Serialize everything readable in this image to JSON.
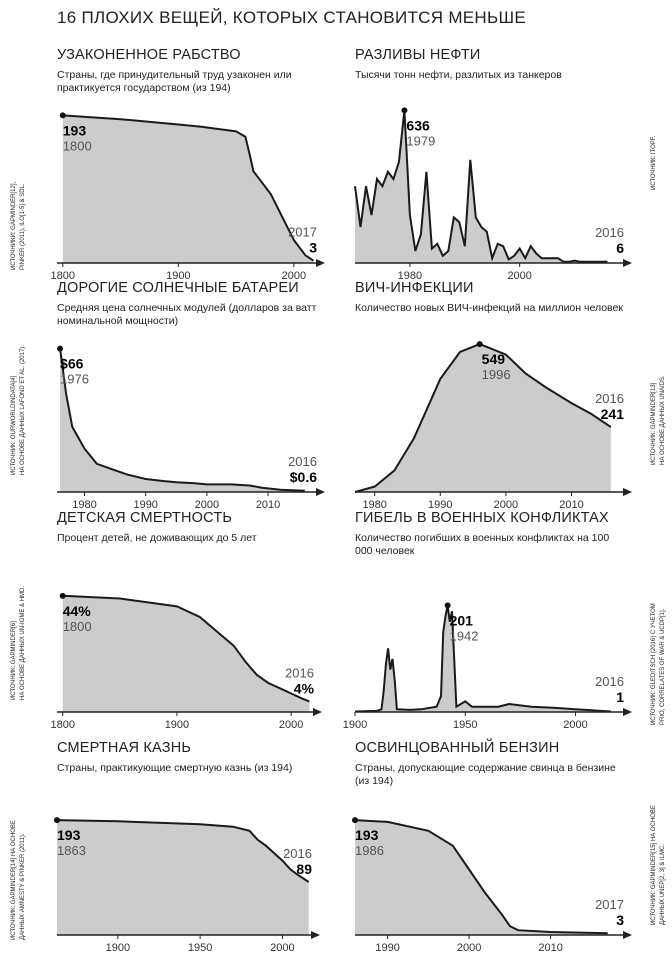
{
  "title": "16 ПЛОХИХ ВЕЩЕЙ, КОТОРЫХ СТАНОВИТСЯ МЕНЬШЕ",
  "colors": {
    "fill": "#cccccc",
    "line": "#1a1a1a"
  },
  "chart_data": [
    {
      "type": "area",
      "title": "УЗАКОНЕННОЕ РАБСТВО",
      "subtitle": "Страны, где принудительный труд узаконен или практикуется государством (из 194)",
      "source": [
        "ИСТОЧНИКИ: GAPMINDER[12],",
        "PINKER (2011), ILO[1-5] & SDL."
      ],
      "start": {
        "value": "193",
        "year": "1800"
      },
      "end": {
        "value": "3",
        "year": "2017"
      },
      "xticks": [
        "1800",
        "1900",
        "2000"
      ],
      "xlim": [
        1795,
        2020
      ],
      "ylim": [
        0,
        200
      ],
      "x": [
        1800,
        1850,
        1900,
        1920,
        1950,
        1958,
        1962,
        1965,
        1970,
        1980,
        1990,
        2000,
        2010,
        2017
      ],
      "y": [
        193,
        188,
        181,
        178,
        172,
        165,
        140,
        120,
        110,
        90,
        60,
        30,
        10,
        3
      ]
    },
    {
      "type": "area",
      "title": "РАЗЛИВЫ НЕФТИ",
      "subtitle": "Тысячи тонн нефти, разлитых из танкеров",
      "source": [
        "ИСТОЧНИК: ITOPF."
      ],
      "start": {
        "value": "636",
        "year": "1979"
      },
      "end": {
        "value": "6",
        "year": "2016"
      },
      "xticks": [
        "1980",
        "2000"
      ],
      "xlim": [
        1970,
        2019
      ],
      "ylim": [
        0,
        700
      ],
      "x": [
        1970,
        1971,
        1972,
        1973,
        1974,
        1975,
        1976,
        1977,
        1978,
        1979,
        1980,
        1981,
        1982,
        1983,
        1984,
        1985,
        1986,
        1987,
        1988,
        1989,
        1990,
        1991,
        1992,
        1993,
        1994,
        1995,
        1996,
        1997,
        1998,
        1999,
        2000,
        2001,
        2002,
        2003,
        2004,
        2005,
        2006,
        2007,
        2008,
        2009,
        2010,
        2011,
        2012,
        2013,
        2014,
        2015,
        2016
      ],
      "y": [
        320,
        150,
        320,
        200,
        350,
        320,
        380,
        350,
        420,
        636,
        200,
        50,
        120,
        380,
        60,
        80,
        30,
        50,
        190,
        170,
        70,
        430,
        190,
        150,
        130,
        20,
        80,
        70,
        15,
        30,
        60,
        20,
        70,
        40,
        20,
        20,
        20,
        20,
        5,
        5,
        10,
        5,
        5,
        5,
        5,
        5,
        6
      ]
    },
    {
      "type": "area",
      "title": "ДОРОГИЕ СОЛНЕЧНЫЕ БАТАРЕИ",
      "subtitle": "Средняя цена солнечных модулей (долларов за ватт номинальной мощности)",
      "source": [
        "ИСТОЧНИК: OURWORLDINDATA[4]",
        "НА ОСНОВЕ ДАННЫХ LAFOND ET AL. (2017)."
      ],
      "start": {
        "value": "$66",
        "year": "1976"
      },
      "end": {
        "value": "$0.6",
        "year": "2016"
      },
      "xticks": [
        "1980",
        "1990",
        "2000",
        "2010"
      ],
      "xlim": [
        1975.5,
        2018
      ],
      "ylim": [
        0,
        70
      ],
      "x": [
        1976,
        1977,
        1978,
        1979,
        1980,
        1982,
        1983,
        1985,
        1987,
        1990,
        1993,
        1995,
        1998,
        2000,
        2004,
        2007,
        2009,
        2012,
        2016
      ],
      "y": [
        66,
        45,
        30,
        25,
        20,
        13,
        12,
        10,
        8,
        6,
        5,
        4.5,
        4,
        3.5,
        3.5,
        3,
        2,
        1,
        0.6
      ]
    },
    {
      "type": "area",
      "title": "ВИЧ-ИНФЕКЦИИ",
      "subtitle": "Количество новых ВИЧ-инфекций на миллион человек",
      "source": [
        "ИСТОЧНИК: GAPMINDER[13]",
        "НА ОСНОВЕ ДАННЫХ UNAIDS."
      ],
      "start": {
        "value": "549",
        "year": "1996"
      },
      "end": {
        "value": "241",
        "year": "2016"
      },
      "xticks": [
        "1980",
        "1990",
        "2000",
        "2010"
      ],
      "xlim": [
        1977,
        2018
      ],
      "ylim": [
        0,
        620
      ],
      "x": [
        1977,
        1980,
        1983,
        1986,
        1990,
        1993,
        1996,
        2000,
        2003,
        2006,
        2010,
        2013,
        2016
      ],
      "y": [
        0,
        20,
        80,
        200,
        420,
        520,
        549,
        510,
        440,
        390,
        330,
        290,
        241
      ]
    },
    {
      "type": "area",
      "title": "ДЕТСКАЯ СМЕРТНОСТЬ",
      "subtitle": "Процент детей, не доживающих до 5 лет",
      "source": [
        "ИСТОЧНИК: GAPMINDER[6]",
        "НА ОСНОВЕ ДАННЫХ UN-IGME & HMD."
      ],
      "start": {
        "value": "44%",
        "year": "1800"
      },
      "end": {
        "value": "4%",
        "year": "2016"
      },
      "xticks": [
        "1800",
        "1900",
        "2000"
      ],
      "xlim": [
        1795,
        2020
      ],
      "ylim": [
        0,
        50
      ],
      "x": [
        1800,
        1850,
        1900,
        1920,
        1950,
        1960,
        1970,
        1980,
        1990,
        2000,
        2010,
        2016
      ],
      "y": [
        44,
        43,
        40,
        36,
        25,
        19,
        14,
        11,
        9,
        7,
        5,
        4
      ]
    },
    {
      "type": "area",
      "title": "ГИБЕЛЬ В ВОЕННЫХ КОНФЛИКТАХ",
      "subtitle": "Количество погибших в военных конфликтах на 100 000 человек",
      "source": [
        "ИСТОЧНИК: GLEDITSCH (2016) С УЧЕТОМ",
        "PRIO, CORRELATES OF WAR & UCDP[1]."
      ],
      "start": {
        "value": "201",
        "year": "1942"
      },
      "end": {
        "value": "1",
        "year": "2016"
      },
      "xticks": [
        "1900",
        "1950",
        "2000"
      ],
      "xlim": [
        1900,
        2022
      ],
      "ylim": [
        0,
        230
      ],
      "x": [
        1900,
        1910,
        1912,
        1913,
        1914,
        1915,
        1916,
        1917,
        1918,
        1919,
        1925,
        1930,
        1937,
        1939,
        1940,
        1941,
        1942,
        1943,
        1944,
        1945,
        1946,
        1950,
        1953,
        1965,
        1970,
        1980,
        1990,
        2000,
        2016
      ],
      "y": [
        1,
        2,
        5,
        40,
        90,
        120,
        80,
        100,
        60,
        5,
        4,
        5,
        10,
        30,
        150,
        180,
        201,
        170,
        190,
        100,
        10,
        20,
        10,
        10,
        15,
        10,
        8,
        5,
        1
      ]
    },
    {
      "type": "area",
      "title": "СМЕРТНАЯ КАЗНЬ",
      "subtitle": "Страны, практикующие смертную казнь (из 194)",
      "source": [
        "ИСТОЧНИК: GAPMINDER[14] НА ОСНОВЕ",
        "ДАННЫХ AMNESTY & PINKER (2011)."
      ],
      "start": {
        "value": "193",
        "year": "1863"
      },
      "end": {
        "value": "89",
        "year": "2016"
      },
      "xticks": [
        "1900",
        "1950",
        "2000"
      ],
      "xlim": [
        1863,
        2018
      ],
      "ylim": [
        0,
        210
      ],
      "x": [
        1863,
        1900,
        1950,
        1970,
        1980,
        1985,
        1990,
        2000,
        2005,
        2010,
        2016
      ],
      "y": [
        193,
        191,
        186,
        182,
        175,
        160,
        150,
        125,
        110,
        100,
        89
      ]
    },
    {
      "type": "area",
      "title": "ОСВИНЦОВАННЫЙ БЕНЗИН",
      "subtitle": "Страны, допускающие содержание свинца в бензине (из 194)",
      "source": [
        "ИСТОЧНИК: GAPMINDER[15] НА ОСНОВЕ",
        "ДАННЫХ UNEP[2, 3] & ILMC."
      ],
      "start": {
        "value": "193",
        "year": "1986"
      },
      "end": {
        "value": "3",
        "year": "2017"
      },
      "xticks": [
        "1990",
        "2000",
        "2010"
      ],
      "xlim": [
        1986,
        2019
      ],
      "ylim": [
        0,
        210
      ],
      "x": [
        1986,
        1990,
        1995,
        1998,
        2000,
        2002,
        2004,
        2005,
        2006,
        2010,
        2017
      ],
      "y": [
        193,
        190,
        175,
        150,
        110,
        70,
        35,
        15,
        8,
        5,
        3
      ]
    }
  ]
}
